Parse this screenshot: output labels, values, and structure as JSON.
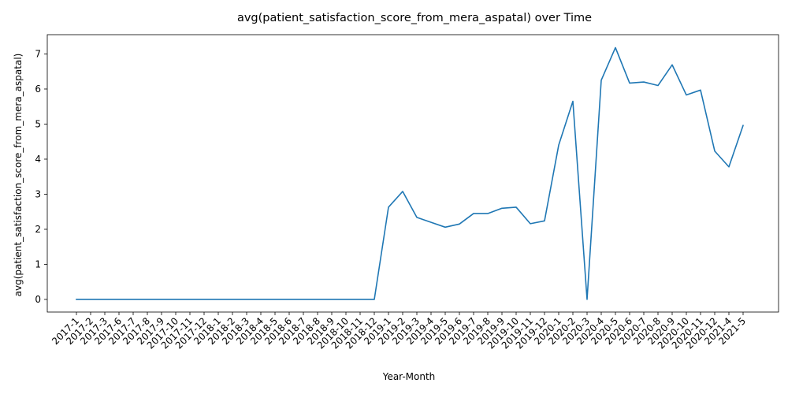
{
  "chart_data": {
    "type": "line",
    "title": "avg(patient_satisfaction_score_from_mera_aspatal) over Time",
    "xlabel": "Year-Month",
    "ylabel": "avg(patient_satisfaction_score_from_mera_aspatal)",
    "ylim": [
      -0.36,
      7.55
    ],
    "yticks": [
      0,
      1,
      2,
      3,
      4,
      5,
      6,
      7
    ],
    "grid": false,
    "line_color": "#1f77b4",
    "categories": [
      "2017-1",
      "2017-2",
      "2017-3",
      "2017-6",
      "2017-7",
      "2017-8",
      "2017-9",
      "2017-10",
      "2017-11",
      "2017-12",
      "2018-1",
      "2018-2",
      "2018-3",
      "2018-4",
      "2018-5",
      "2018-6",
      "2018-7",
      "2018-8",
      "2018-9",
      "2018-10",
      "2018-11",
      "2018-12",
      "2019-1",
      "2019-2",
      "2019-3",
      "2019-4",
      "2019-5",
      "2019-6",
      "2019-7",
      "2019-8",
      "2019-9",
      "2019-10",
      "2019-11",
      "2019-12",
      "2020-1",
      "2020-2",
      "2020-3",
      "2020-4",
      "2020-5",
      "2020-6",
      "2020-7",
      "2020-8",
      "2020-9",
      "2020-10",
      "2020-11",
      "2020-12",
      "2021-4",
      "2021-5"
    ],
    "values": [
      0,
      0,
      0,
      0,
      0,
      0,
      0,
      0,
      0,
      0,
      0,
      0,
      0,
      0,
      0,
      0,
      0,
      0,
      0,
      0,
      0,
      0,
      2.63,
      3.08,
      2.34,
      2.2,
      2.06,
      2.15,
      2.45,
      2.45,
      2.6,
      2.63,
      2.16,
      2.24,
      4.4,
      5.65,
      0,
      6.25,
      7.18,
      6.17,
      6.2,
      6.1,
      6.69,
      5.83,
      5.97,
      4.23,
      3.78,
      4.96
    ]
  }
}
